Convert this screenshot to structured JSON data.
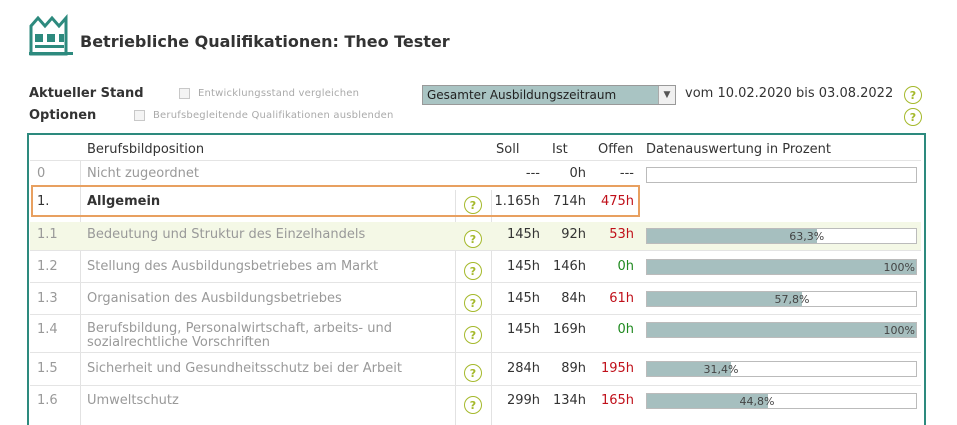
{
  "page": {
    "title": "Betriebliche Qualifikationen: Theo Tester",
    "logo_icon": "factory-icon",
    "accent_color": "#2d8a7e"
  },
  "options": {
    "status_label": "Aktueller Stand",
    "compare_label": "Entwicklungsstand vergleichen",
    "options_label": "Optionen",
    "hide_label": "Berufsbegleitende Qualifikationen ausblenden",
    "period_select": "Gesamter Ausbildungszeitraum",
    "date_range": "vom 10.02.2020 bis 03.08.2022"
  },
  "table": {
    "headers": {
      "position": "Berufsbildposition",
      "soll": "Soll",
      "ist": "Ist",
      "offen": "Offen",
      "chart": "Datenauswertung in Prozent"
    },
    "rows": [
      {
        "nr": "0",
        "name": "Nicht zugeordnet",
        "soll": "---",
        "ist": "0h",
        "offen": "---",
        "pct": 0,
        "pct_label": ""
      },
      {
        "nr": "1.",
        "name": "Allgemein",
        "soll": "1.165h",
        "ist": "714h",
        "offen": "475h"
      },
      {
        "nr": "1.1",
        "name": "Bedeutung und Struktur des Einzelhandels",
        "soll": "145h",
        "ist": "92h",
        "offen": "53h",
        "pct": 63.3,
        "pct_label": "63,3%"
      },
      {
        "nr": "1.2",
        "name": "Stellung des Ausbildungsbetriebes am Markt",
        "soll": "145h",
        "ist": "146h",
        "offen": "0h",
        "pct": 100,
        "pct_label": "100%"
      },
      {
        "nr": "1.3",
        "name": "Organisation des Ausbildungsbetriebes",
        "soll": "145h",
        "ist": "84h",
        "offen": "61h",
        "pct": 57.8,
        "pct_label": "57,8%"
      },
      {
        "nr": "1.4",
        "name": "Berufsbildung, Personalwirtschaft, arbeits- und",
        "name2": "sozialrechtliche Vorschriften",
        "soll": "145h",
        "ist": "169h",
        "offen": "0h",
        "pct": 100,
        "pct_label": "100%"
      },
      {
        "nr": "1.5",
        "name": "Sicherheit und Gesundheitsschutz bei der Arbeit",
        "soll": "284h",
        "ist": "89h",
        "offen": "195h",
        "pct": 31.4,
        "pct_label": "31,4%"
      },
      {
        "nr": "1.6",
        "name": "Umweltschutz",
        "soll": "299h",
        "ist": "134h",
        "offen": "165h",
        "pct": 44.8,
        "pct_label": "44,8%"
      }
    ]
  }
}
